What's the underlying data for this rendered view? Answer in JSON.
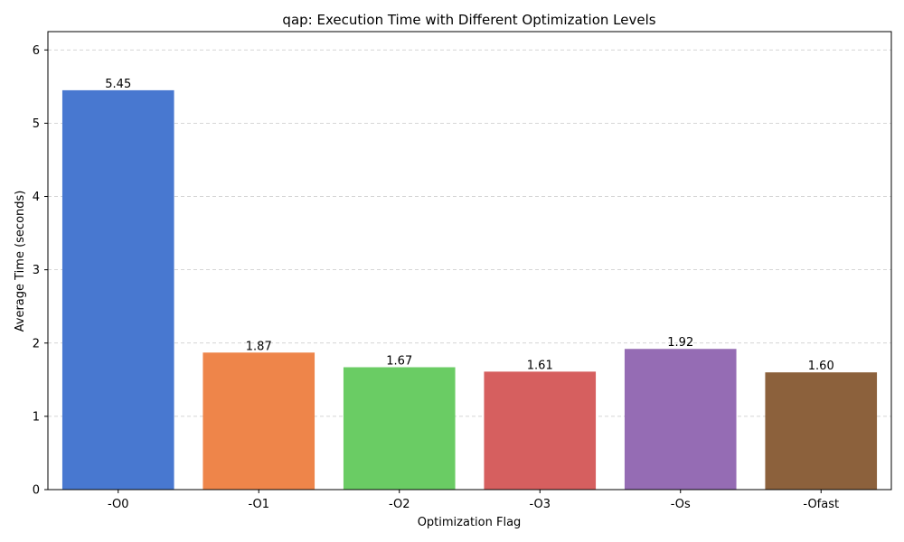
{
  "chart_data": {
    "type": "bar",
    "title": "qap: Execution Time with Different Optimization Levels",
    "xlabel": "Optimization Flag",
    "ylabel": "Average Time (seconds)",
    "categories": [
      "-O0",
      "-O1",
      "-O2",
      "-O3",
      "-Os",
      "-Ofast"
    ],
    "values": [
      5.45,
      1.87,
      1.67,
      1.61,
      1.92,
      1.6
    ],
    "value_labels": [
      "5.45",
      "1.87",
      "1.67",
      "1.61",
      "1.92",
      "1.60"
    ],
    "colors": [
      "#4878d0",
      "#ee854a",
      "#6acc64",
      "#d65f5f",
      "#956cb4",
      "#8c613c"
    ],
    "ylim": [
      0,
      6.25
    ],
    "yticks": [
      0,
      1,
      2,
      3,
      4,
      5,
      6
    ],
    "grid": "y-dashed",
    "legend": "none"
  }
}
